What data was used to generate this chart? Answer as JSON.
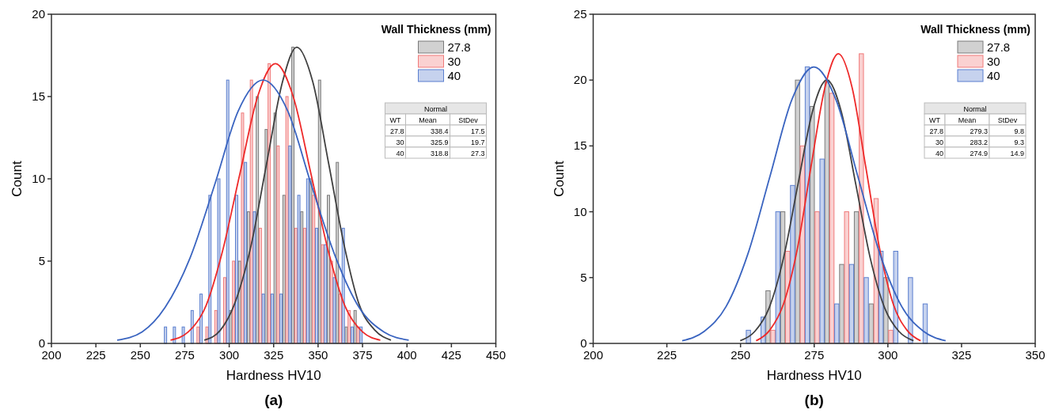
{
  "chart_data": [
    {
      "type": "histogram",
      "title": "(a)",
      "xlabel": "Hardness HV10",
      "ylabel": "Count",
      "legend_title": "Wall Thickness (mm)",
      "legend": "top right",
      "xlim": [
        200,
        450
      ],
      "xticks": [
        200,
        225,
        250,
        275,
        300,
        325,
        350,
        375,
        400,
        425,
        450
      ],
      "ylim": [
        0,
        20
      ],
      "yticks": [
        0,
        5,
        10,
        15,
        20
      ],
      "bins": [
        260,
        265,
        270,
        275,
        280,
        285,
        290,
        295,
        300,
        305,
        310,
        315,
        320,
        325,
        330,
        335,
        340,
        345,
        350,
        355,
        360,
        365,
        370,
        375
      ],
      "series": [
        {
          "name": "27.8",
          "color": "#7a7a7a",
          "values": [
            0,
            0,
            0,
            0,
            0,
            0,
            0,
            0,
            2,
            5,
            8,
            15,
            13,
            14,
            9,
            18,
            8,
            10,
            16,
            9,
            11,
            1,
            2
          ]
        },
        {
          "name": "30",
          "color": "#f07a7a",
          "values": [
            0,
            0,
            0,
            0,
            1,
            1,
            2,
            4,
            5,
            14,
            16,
            7,
            17,
            12,
            15,
            7,
            7,
            9,
            6,
            5,
            3,
            2,
            1
          ]
        },
        {
          "name": "40",
          "color": "#5b7fcf",
          "values": [
            1,
            1,
            1,
            2,
            3,
            9,
            10,
            16,
            9,
            11,
            8,
            3,
            3,
            3,
            12,
            9,
            10,
            7,
            6,
            4,
            7,
            1,
            1
          ]
        },
        {
          "type": "line",
          "color": "#404040",
          "x": [
            286,
            295,
            303,
            312,
            321,
            330,
            338,
            347,
            356,
            365,
            373,
            382,
            391
          ],
          "values": [
            0.2,
            0.8,
            2.4,
            5.8,
            10.9,
            15.9,
            18,
            15.9,
            10.9,
            5.8,
            2.4,
            0.8,
            0.2
          ]
        },
        {
          "type": "line",
          "color": "#ee2a2a",
          "x": [
            267,
            277,
            287,
            296,
            306,
            316,
            326,
            336,
            346,
            356,
            365,
            375,
            385
          ],
          "values": [
            0.2,
            0.7,
            2.3,
            5.5,
            10.3,
            15,
            17,
            15,
            10.3,
            5.5,
            2.3,
            0.7,
            0.2
          ]
        },
        {
          "type": "line",
          "color": "#3a64c0",
          "x": [
            237,
            251,
            264,
            278,
            292,
            305,
            319,
            333,
            346,
            360,
            373,
            387,
            401
          ],
          "values": [
            0.2,
            0.7,
            2.2,
            5.2,
            9.7,
            14.1,
            16,
            14.1,
            9.7,
            5.2,
            2.2,
            0.7,
            0.2
          ]
        }
      ],
      "annotations": [
        "Normal",
        "WT",
        "Mean",
        "StDev",
        "27.8",
        "338.4",
        "17.5",
        "30",
        "325.9",
        "19.7",
        "40",
        "318.8",
        "27.3"
      ]
    },
    {
      "type": "histogram",
      "title": "(b)",
      "xlabel": "Hardness HV10",
      "ylabel": "Count",
      "legend_title": "Wall Thickness (mm)",
      "legend": "top right",
      "xlim": [
        200,
        350
      ],
      "xticks": [
        200,
        225,
        250,
        275,
        300,
        325,
        350
      ],
      "ylim": [
        0,
        25
      ],
      "yticks": [
        0,
        5,
        10,
        15,
        20,
        25
      ],
      "bins": [
        248.5,
        253.5,
        258.5,
        263.5,
        268.5,
        273.5,
        278.5,
        283.5,
        288.5,
        293.5,
        298.5,
        303.5,
        308.5,
        313.5
      ],
      "series": [
        {
          "name": "27.8",
          "color": "#7a7a7a",
          "values": [
            0,
            0,
            4,
            10,
            20,
            18,
            20,
            6,
            10,
            3,
            5,
            0,
            0
          ]
        },
        {
          "name": "30",
          "color": "#f07a7a",
          "values": [
            0,
            0,
            1,
            7,
            15,
            10,
            19,
            10,
            22,
            11,
            1,
            0,
            0
          ]
        },
        {
          "name": "40",
          "color": "#5b7fcf",
          "values": [
            1,
            2,
            10,
            12,
            21,
            14,
            3,
            6,
            5,
            7,
            7,
            5,
            3
          ]
        },
        {
          "type": "line",
          "color": "#404040",
          "x": [
            249.9,
            254.8,
            259.7,
            264.6,
            269.5,
            274.4,
            279.3,
            284.2,
            289.1,
            294,
            298.9,
            303.8,
            308.7
          ],
          "values": [
            0.2,
            0.9,
            2.7,
            6.5,
            12.1,
            17.6,
            20,
            17.6,
            12.1,
            6.5,
            2.7,
            0.9,
            0.2
          ]
        },
        {
          "type": "line",
          "color": "#ee2a2a",
          "x": [
            255.3,
            259.9,
            264.6,
            269.3,
            273.9,
            278.6,
            283.2,
            287.9,
            292.5,
            297.2,
            301.8,
            306.5,
            311.1
          ],
          "values": [
            0.2,
            1,
            3,
            7.2,
            13.4,
            19.4,
            22,
            19.4,
            13.4,
            7.2,
            3,
            1,
            0.2
          ]
        },
        {
          "type": "line",
          "color": "#3a64c0",
          "x": [
            230.2,
            237.6,
            245.1,
            252.5,
            260,
            267.4,
            274.9,
            282.4,
            289.8,
            297.3,
            304.7,
            312.2,
            319.6
          ],
          "values": [
            0.2,
            0.9,
            2.8,
            6.8,
            12.7,
            18.5,
            21,
            18.5,
            12.7,
            6.8,
            2.8,
            0.9,
            0.2
          ]
        }
      ],
      "annotations": [
        "Normal",
        "WT",
        "Mean",
        "StDev",
        "27.8",
        "279.3",
        "9.8",
        "30",
        "283.2",
        "9.3",
        "40",
        "274.9",
        "14.9"
      ]
    }
  ]
}
